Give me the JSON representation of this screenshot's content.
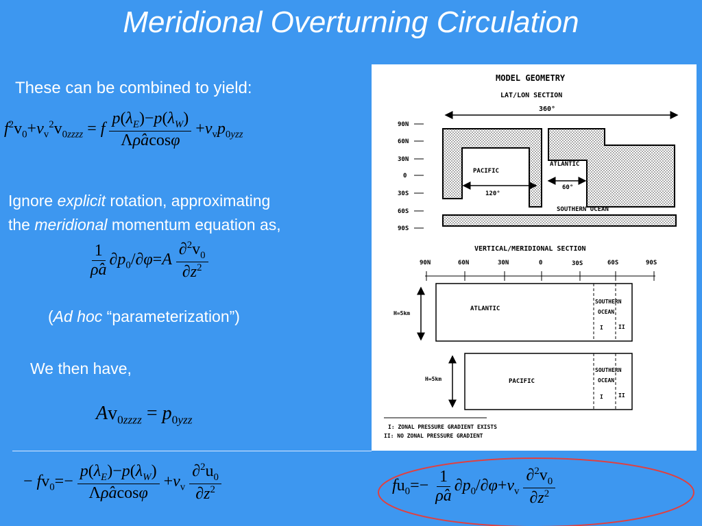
{
  "title": "Meridional Overturning Circulation",
  "text": {
    "combined": "These can be combined to yield:",
    "ignore_1": "Ignore",
    "ignore_2": "explicit",
    "ignore_3": "rotation, approximating",
    "ignore_4": "the",
    "ignore_5": "meridional",
    "ignore_6": "momentum equation as,",
    "adhoc_open": "(",
    "adhoc_em": "Ad hoc",
    "adhoc_rest": "“parameterization”)",
    "then": "We then have,"
  },
  "diagram": {
    "title": "MODEL GEOMETRY",
    "latlon": "LAT/LON SECTION",
    "deg360": "360°",
    "lat_ticks": [
      "90N",
      "60N",
      "30N",
      "0",
      "30S",
      "60S",
      "90S"
    ],
    "pacific": "PACIFIC",
    "atlantic": "ATLANTIC",
    "deg120": "120°",
    "deg60": "60°",
    "southern_ocean": "SOUTHERN OCEAN",
    "vertical_title": "VERTICAL/MERIDIONAL SECTION",
    "vm_ticks": [
      "90N",
      "60N",
      "30N",
      "0",
      "30S",
      "60S",
      "90S"
    ],
    "h5km": "H=5km",
    "box_atlantic": "ATLANTIC",
    "box_pacific": "PACIFIC",
    "southern": "SOUTHERN",
    "ocean": "OCEAN",
    "roman1": "I",
    "roman2": "II",
    "legend1": "I: ZONAL PRESSURE GRADIENT EXISTS",
    "legend2": "II: NO ZONAL PRESSURE GRADIENT"
  },
  "colors": {
    "background": "#3d97f0",
    "ellipse": "#e04040"
  }
}
